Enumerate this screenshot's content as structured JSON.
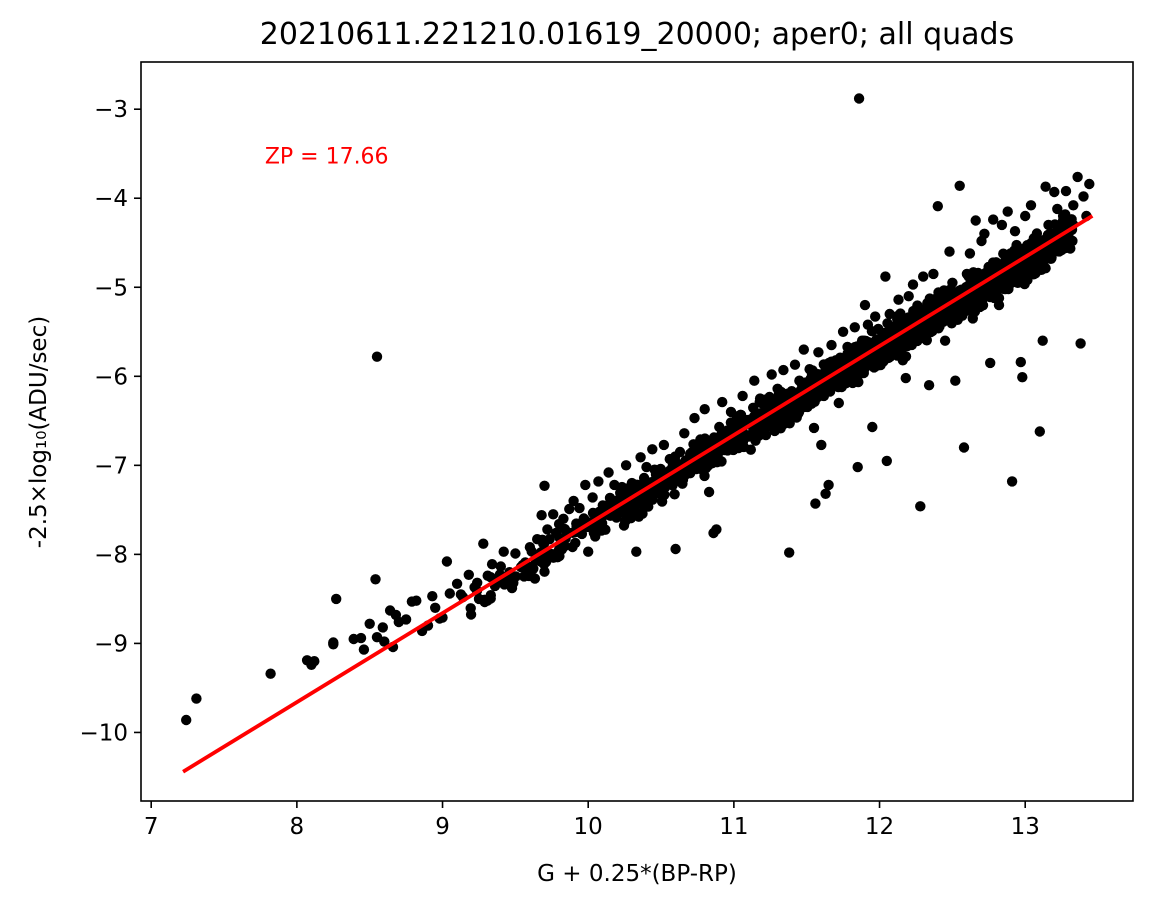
{
  "chart_data": {
    "type": "scatter",
    "title": "20210611.221210.01619_20000; aper0; all quads",
    "xlabel": "G + 0.25*(BP-RP)",
    "ylabel": "-2.5×log₁₀(ADU/sec)",
    "xlim": [
      6.93,
      13.74
    ],
    "ylim": [
      -10.77,
      -2.47
    ],
    "x_ticks": [
      7,
      8,
      9,
      10,
      11,
      12,
      13
    ],
    "y_ticks": [
      -3,
      -4,
      -5,
      -6,
      -7,
      -8,
      -9,
      -10
    ],
    "x_tick_labels": [
      "7",
      "8",
      "9",
      "10",
      "11",
      "12",
      "13"
    ],
    "y_tick_labels": [
      "−3",
      "−4",
      "−5",
      "−6",
      "−7",
      "−8",
      "−9",
      "−10"
    ],
    "grid": false,
    "annotation": {
      "text": "ZP = 17.66",
      "color": "#ff0000",
      "x": 7.78,
      "y": -3.52
    },
    "fit_line": {
      "color": "#ff0000",
      "slope": 1.0,
      "intercept": -17.66,
      "x_range": [
        7.23,
        13.45
      ]
    },
    "marker_color": "#000000",
    "points": [
      [
        7.24,
        -9.86
      ],
      [
        7.31,
        -9.62
      ],
      [
        7.82,
        -9.34
      ],
      [
        8.07,
        -9.19
      ],
      [
        8.1,
        -9.24
      ],
      [
        8.12,
        -9.2
      ],
      [
        8.25,
        -9.01
      ],
      [
        8.25,
        -8.99
      ],
      [
        8.27,
        -8.5
      ],
      [
        8.39,
        -8.95
      ],
      [
        8.44,
        -8.94
      ],
      [
        8.46,
        -9.07
      ],
      [
        8.5,
        -8.78
      ],
      [
        8.54,
        -8.28
      ],
      [
        8.55,
        -8.93
      ],
      [
        8.55,
        -5.78
      ],
      [
        8.59,
        -8.82
      ],
      [
        8.6,
        -8.98
      ],
      [
        8.64,
        -8.63
      ],
      [
        8.66,
        -9.04
      ],
      [
        8.68,
        -8.68
      ],
      [
        8.7,
        -8.76
      ],
      [
        8.75,
        -8.73
      ],
      [
        8.79,
        -8.53
      ],
      [
        8.82,
        -8.52
      ],
      [
        8.86,
        -8.86
      ],
      [
        8.9,
        -8.8
      ],
      [
        8.93,
        -8.47
      ],
      [
        8.95,
        -8.6
      ],
      [
        8.98,
        -8.72
      ],
      [
        9.0,
        -8.71
      ],
      [
        9.03,
        -8.08
      ],
      [
        9.05,
        -8.44
      ],
      [
        9.1,
        -8.33
      ],
      [
        9.14,
        -8.48
      ],
      [
        9.18,
        -8.23
      ],
      [
        9.22,
        -8.37
      ],
      [
        9.25,
        -8.5
      ],
      [
        9.28,
        -7.88
      ],
      [
        9.31,
        -8.24
      ],
      [
        9.34,
        -8.11
      ],
      [
        9.38,
        -8.3
      ],
      [
        9.42,
        -7.97
      ],
      [
        9.46,
        -8.2
      ],
      [
        9.5,
        -7.99
      ],
      [
        9.55,
        -8.12
      ],
      [
        9.6,
        -7.92
      ],
      [
        9.65,
        -7.83
      ],
      [
        9.68,
        -7.56
      ],
      [
        9.7,
        -7.23
      ],
      [
        9.72,
        -7.72
      ],
      [
        9.76,
        -7.55
      ],
      [
        9.8,
        -7.66
      ],
      [
        9.83,
        -7.6
      ],
      [
        9.87,
        -7.49
      ],
      [
        9.9,
        -7.4
      ],
      [
        9.94,
        -7.48
      ],
      [
        9.98,
        -7.22
      ],
      [
        10.0,
        -7.97
      ],
      [
        10.03,
        -7.36
      ],
      [
        10.07,
        -7.18
      ],
      [
        10.1,
        -7.45
      ],
      [
        10.14,
        -7.08
      ],
      [
        10.18,
        -7.22
      ],
      [
        10.22,
        -7.31
      ],
      [
        10.26,
        -7.0
      ],
      [
        10.3,
        -7.2
      ],
      [
        10.33,
        -7.97
      ],
      [
        10.36,
        -6.91
      ],
      [
        10.4,
        -7.02
      ],
      [
        10.44,
        -6.82
      ],
      [
        10.48,
        -7.09
      ],
      [
        10.52,
        -6.77
      ],
      [
        10.56,
        -6.93
      ],
      [
        10.6,
        -7.94
      ],
      [
        10.63,
        -6.85
      ],
      [
        10.66,
        -6.64
      ],
      [
        10.7,
        -6.87
      ],
      [
        10.73,
        -6.47
      ],
      [
        10.77,
        -6.71
      ],
      [
        10.8,
        -6.37
      ],
      [
        10.83,
        -7.3
      ],
      [
        10.86,
        -7.76
      ],
      [
        10.88,
        -7.72
      ],
      [
        10.9,
        -6.57
      ],
      [
        10.92,
        -6.29
      ],
      [
        10.95,
        -6.62
      ],
      [
        10.98,
        -6.4
      ],
      [
        11.02,
        -6.45
      ],
      [
        11.06,
        -6.22
      ],
      [
        11.1,
        -6.49
      ],
      [
        11.14,
        -6.05
      ],
      [
        11.18,
        -6.25
      ],
      [
        11.22,
        -6.66
      ],
      [
        11.26,
        -5.98
      ],
      [
        11.3,
        -6.14
      ],
      [
        11.34,
        -5.93
      ],
      [
        11.38,
        -7.98
      ],
      [
        11.42,
        -5.87
      ],
      [
        11.45,
        -6.05
      ],
      [
        11.48,
        -5.7
      ],
      [
        11.52,
        -5.92
      ],
      [
        11.55,
        -6.58
      ],
      [
        11.56,
        -7.43
      ],
      [
        11.58,
        -5.73
      ],
      [
        11.6,
        -6.77
      ],
      [
        11.63,
        -7.32
      ],
      [
        11.65,
        -7.22
      ],
      [
        11.67,
        -5.65
      ],
      [
        11.7,
        -5.82
      ],
      [
        11.72,
        -6.3
      ],
      [
        11.75,
        -5.5
      ],
      [
        11.78,
        -5.67
      ],
      [
        11.8,
        -6.05
      ],
      [
        11.83,
        -5.45
      ],
      [
        11.85,
        -7.02
      ],
      [
        11.86,
        -2.88
      ],
      [
        11.88,
        -5.6
      ],
      [
        11.9,
        -5.2
      ],
      [
        11.92,
        -5.42
      ],
      [
        11.95,
        -6.57
      ],
      [
        11.97,
        -5.33
      ],
      [
        12.0,
        -5.58
      ],
      [
        12.04,
        -4.88
      ],
      [
        12.05,
        -6.95
      ],
      [
        12.07,
        -5.3
      ],
      [
        12.1,
        -5.5
      ],
      [
        12.13,
        -5.14
      ],
      [
        12.16,
        -5.82
      ],
      [
        12.18,
        -6.02
      ],
      [
        12.2,
        -5.1
      ],
      [
        12.23,
        -4.97
      ],
      [
        12.26,
        -5.45
      ],
      [
        12.28,
        -7.46
      ],
      [
        12.3,
        -4.88
      ],
      [
        12.34,
        -6.1
      ],
      [
        12.37,
        -4.85
      ],
      [
        12.4,
        -4.09
      ],
      [
        12.42,
        -5.2
      ],
      [
        12.45,
        -5.6
      ],
      [
        12.48,
        -4.6
      ],
      [
        12.5,
        -4.95
      ],
      [
        12.52,
        -6.05
      ],
      [
        12.55,
        -3.86
      ],
      [
        12.58,
        -6.8
      ],
      [
        12.6,
        -4.85
      ],
      [
        12.62,
        -4.62
      ],
      [
        12.64,
        -5.35
      ],
      [
        12.66,
        -4.25
      ],
      [
        12.68,
        -5.1
      ],
      [
        12.7,
        -4.48
      ],
      [
        12.72,
        -4.4
      ],
      [
        12.74,
        -4.96
      ],
      [
        12.76,
        -5.85
      ],
      [
        12.78,
        -4.24
      ],
      [
        12.8,
        -4.72
      ],
      [
        12.82,
        -5.2
      ],
      [
        12.84,
        -4.3
      ],
      [
        12.86,
        -4.85
      ],
      [
        12.88,
        -4.15
      ],
      [
        12.9,
        -4.62
      ],
      [
        12.91,
        -7.18
      ],
      [
        12.93,
        -4.37
      ],
      [
        12.95,
        -4.95
      ],
      [
        12.97,
        -5.84
      ],
      [
        12.98,
        -6.01
      ],
      [
        13.0,
        -4.2
      ],
      [
        13.02,
        -4.68
      ],
      [
        13.04,
        -4.08
      ],
      [
        13.06,
        -4.45
      ],
      [
        13.08,
        -4.82
      ],
      [
        13.1,
        -6.62
      ],
      [
        13.12,
        -5.6
      ],
      [
        13.14,
        -3.87
      ],
      [
        13.16,
        -4.3
      ],
      [
        13.18,
        -4.65
      ],
      [
        13.2,
        -3.93
      ],
      [
        13.22,
        -4.12
      ],
      [
        13.24,
        -4.5
      ],
      [
        13.26,
        -4.2
      ],
      [
        13.28,
        -3.92
      ],
      [
        13.3,
        -4.3
      ],
      [
        13.33,
        -4.08
      ],
      [
        13.36,
        -3.76
      ],
      [
        13.38,
        -5.63
      ],
      [
        13.4,
        -3.98
      ],
      [
        13.42,
        -4.2
      ],
      [
        13.44,
        -3.84
      ]
    ],
    "band": {
      "x_range": [
        9.0,
        13.33
      ],
      "count": 1500,
      "spread": 0.1,
      "offset": -0.04
    }
  }
}
